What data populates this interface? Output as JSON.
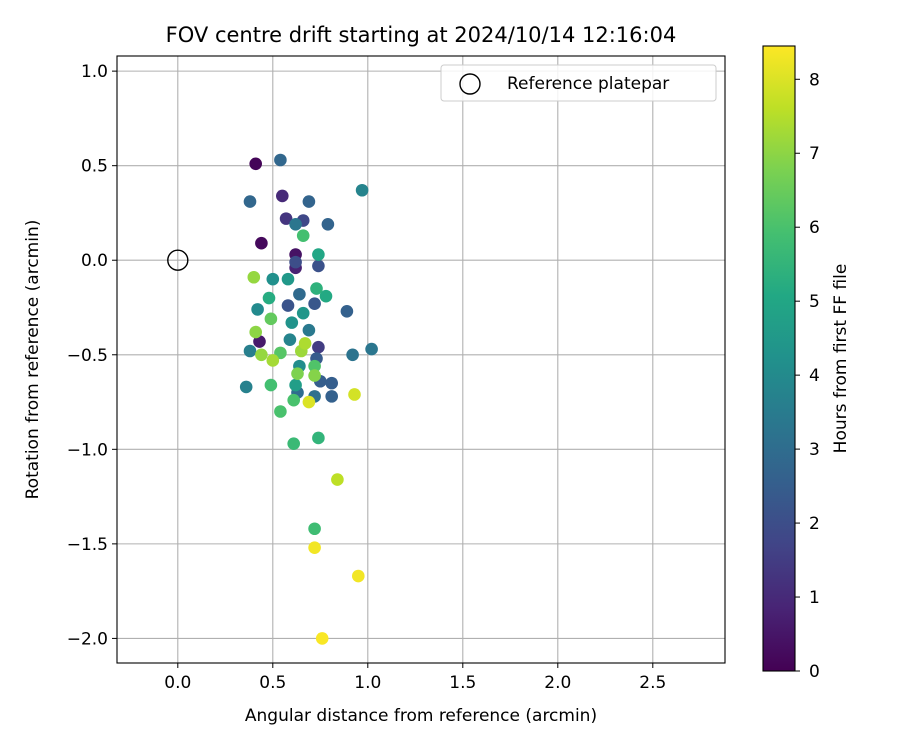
{
  "chart_data": {
    "type": "scatter",
    "title": "FOV centre drift starting at 2024/10/14 12:16:04",
    "xlabel": "Angular distance from reference (arcmin)",
    "ylabel": "Rotation from reference (arcmin)",
    "xlim": [
      -0.32,
      2.88
    ],
    "ylim": [
      -2.13,
      1.08
    ],
    "xticks": [
      0.0,
      0.5,
      1.0,
      1.5,
      2.0,
      2.5
    ],
    "xtick_labels": [
      "0.0",
      "0.5",
      "1.0",
      "1.5",
      "2.0",
      "2.5"
    ],
    "yticks": [
      1.0,
      0.5,
      0.0,
      -0.5,
      -1.0,
      -1.5,
      -2.0
    ],
    "ytick_labels": [
      "1.0",
      "0.5",
      "0.0",
      "−0.5",
      "−1.0",
      "−1.5",
      "−2.0"
    ],
    "grid": true,
    "legend": {
      "position": "top-right",
      "entries": [
        "Reference platepar"
      ]
    },
    "colorbar": {
      "label": "Hours from first FF file",
      "colormap": "viridis",
      "range": [
        0,
        8.45
      ],
      "ticks": [
        0,
        1,
        2,
        3,
        4,
        5,
        6,
        7,
        8
      ],
      "tick_labels": [
        "0",
        "1",
        "2",
        "3",
        "4",
        "5",
        "6",
        "7",
        "8"
      ]
    },
    "reference_point": {
      "name": "Reference platepar",
      "x": 0.0,
      "y": 0.0,
      "marker": "hollow-circle"
    },
    "series": [
      {
        "points": [
          {
            "x": 0.41,
            "y": 0.51,
            "c": 0.1
          },
          {
            "x": 0.44,
            "y": 0.09,
            "c": 0.2
          },
          {
            "x": 0.62,
            "y": 0.03,
            "c": 0.4
          },
          {
            "x": 0.43,
            "y": -0.43,
            "c": 0.6
          },
          {
            "x": 0.62,
            "y": -0.04,
            "c": 0.8
          },
          {
            "x": 0.55,
            "y": 0.34,
            "c": 1.0
          },
          {
            "x": 0.57,
            "y": 0.22,
            "c": 1.3
          },
          {
            "x": 0.74,
            "y": -0.46,
            "c": 1.5
          },
          {
            "x": 0.66,
            "y": 0.21,
            "c": 1.8
          },
          {
            "x": 0.62,
            "y": -0.01,
            "c": 2.0
          },
          {
            "x": 0.74,
            "y": -0.03,
            "c": 2.1
          },
          {
            "x": 0.58,
            "y": -0.24,
            "c": 2.2
          },
          {
            "x": 0.72,
            "y": -0.23,
            "c": 2.3
          },
          {
            "x": 0.73,
            "y": -0.52,
            "c": 2.4
          },
          {
            "x": 0.75,
            "y": -0.64,
            "c": 2.5
          },
          {
            "x": 0.81,
            "y": -0.65,
            "c": 2.5
          },
          {
            "x": 0.81,
            "y": -0.72,
            "c": 2.6
          },
          {
            "x": 0.89,
            "y": -0.27,
            "c": 2.6
          },
          {
            "x": 0.69,
            "y": 0.31,
            "c": 2.7
          },
          {
            "x": 0.79,
            "y": 0.19,
            "c": 2.7
          },
          {
            "x": 0.54,
            "y": 0.53,
            "c": 2.8
          },
          {
            "x": 0.38,
            "y": 0.31,
            "c": 2.8
          },
          {
            "x": 0.64,
            "y": -0.18,
            "c": 2.9
          },
          {
            "x": 0.63,
            "y": -0.7,
            "c": 3.0
          },
          {
            "x": 0.72,
            "y": -0.72,
            "c": 3.1
          },
          {
            "x": 0.92,
            "y": -0.5,
            "c": 3.2
          },
          {
            "x": 1.02,
            "y": -0.47,
            "c": 3.3
          },
          {
            "x": 0.62,
            "y": 0.19,
            "c": 3.3
          },
          {
            "x": 0.69,
            "y": -0.37,
            "c": 3.4
          },
          {
            "x": 0.38,
            "y": -0.48,
            "c": 3.6
          },
          {
            "x": 0.36,
            "y": -0.67,
            "c": 3.7
          },
          {
            "x": 0.97,
            "y": 0.37,
            "c": 3.8
          },
          {
            "x": 0.59,
            "y": -0.42,
            "c": 3.8
          },
          {
            "x": 0.42,
            "y": -0.26,
            "c": 4.0
          },
          {
            "x": 0.64,
            "y": -0.56,
            "c": 4.1
          },
          {
            "x": 0.5,
            "y": -0.1,
            "c": 4.2
          },
          {
            "x": 0.6,
            "y": -0.33,
            "c": 4.3
          },
          {
            "x": 0.66,
            "y": -0.28,
            "c": 4.4
          },
          {
            "x": 0.58,
            "y": -0.1,
            "c": 4.5
          },
          {
            "x": 0.62,
            "y": -0.66,
            "c": 4.7
          },
          {
            "x": 0.74,
            "y": 0.03,
            "c": 5.0
          },
          {
            "x": 0.78,
            "y": -0.19,
            "c": 5.1
          },
          {
            "x": 0.48,
            "y": -0.2,
            "c": 5.2
          },
          {
            "x": 0.73,
            "y": -0.15,
            "c": 5.4
          },
          {
            "x": 0.74,
            "y": -0.94,
            "c": 5.5
          },
          {
            "x": 0.61,
            "y": -0.97,
            "c": 5.7
          },
          {
            "x": 0.72,
            "y": -1.42,
            "c": 5.8
          },
          {
            "x": 0.66,
            "y": 0.13,
            "c": 5.9
          },
          {
            "x": 0.49,
            "y": -0.66,
            "c": 5.9
          },
          {
            "x": 0.54,
            "y": -0.8,
            "c": 6.0
          },
          {
            "x": 0.61,
            "y": -0.74,
            "c": 6.0
          },
          {
            "x": 0.72,
            "y": -0.56,
            "c": 6.1
          },
          {
            "x": 0.54,
            "y": -0.49,
            "c": 6.2
          },
          {
            "x": 0.49,
            "y": -0.31,
            "c": 6.4
          },
          {
            "x": 0.63,
            "y": -0.6,
            "c": 6.8
          },
          {
            "x": 0.72,
            "y": -0.61,
            "c": 6.9
          },
          {
            "x": 0.41,
            "y": -0.38,
            "c": 7.0
          },
          {
            "x": 0.44,
            "y": -0.5,
            "c": 7.1
          },
          {
            "x": 0.4,
            "y": -0.09,
            "c": 7.1
          },
          {
            "x": 0.65,
            "y": -0.48,
            "c": 7.2
          },
          {
            "x": 0.5,
            "y": -0.53,
            "c": 7.3
          },
          {
            "x": 0.67,
            "y": -0.44,
            "c": 7.4
          },
          {
            "x": 0.84,
            "y": -1.16,
            "c": 7.6
          },
          {
            "x": 0.93,
            "y": -0.71,
            "c": 7.9
          },
          {
            "x": 0.69,
            "y": -0.75,
            "c": 8.0
          },
          {
            "x": 0.72,
            "y": -1.52,
            "c": 8.3
          },
          {
            "x": 0.95,
            "y": -1.67,
            "c": 8.3
          },
          {
            "x": 0.76,
            "y": -2.0,
            "c": 8.4
          }
        ]
      }
    ]
  }
}
